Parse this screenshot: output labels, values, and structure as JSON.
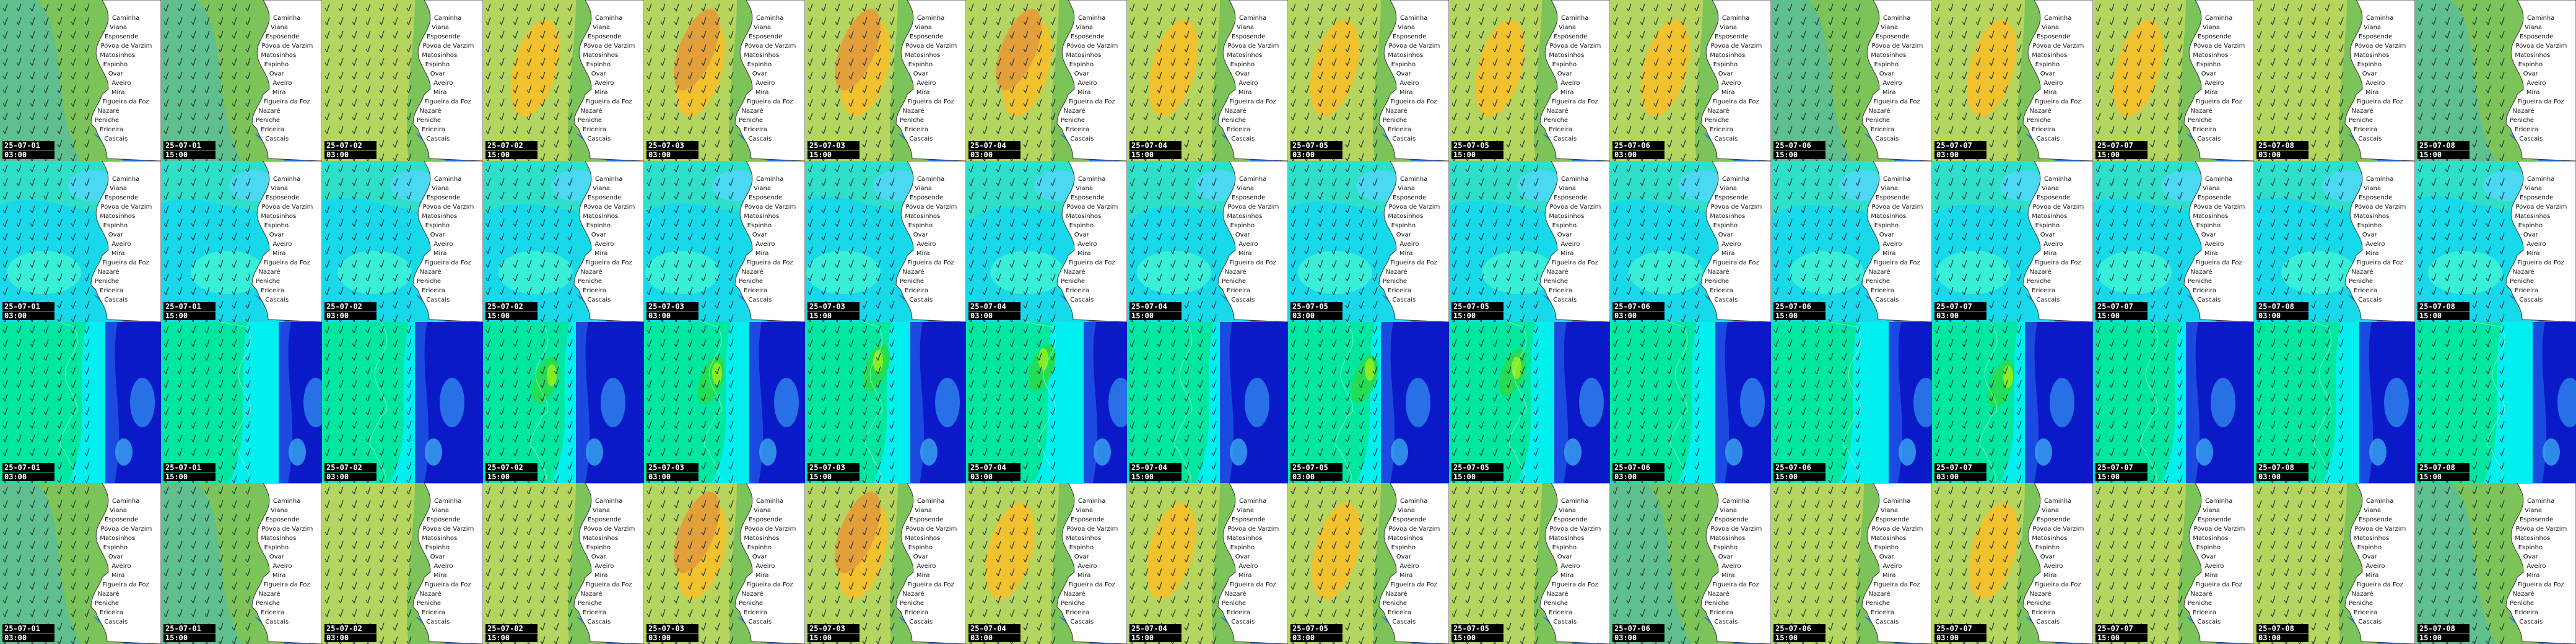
{
  "map": {
    "rows": [
      {
        "variable": "wind-a",
        "frames": [
          {
            "date": "25-07-01",
            "time": "03:00",
            "max_level": 1
          },
          {
            "date": "25-07-01",
            "time": "15:00",
            "max_level": 1
          },
          {
            "date": "25-07-02",
            "time": "03:00",
            "max_level": 2
          },
          {
            "date": "25-07-02",
            "time": "15:00",
            "max_level": 3
          },
          {
            "date": "25-07-03",
            "time": "03:00",
            "max_level": 4
          },
          {
            "date": "25-07-03",
            "time": "15:00",
            "max_level": 4
          },
          {
            "date": "25-07-04",
            "time": "03:00",
            "max_level": 4
          },
          {
            "date": "25-07-04",
            "time": "15:00",
            "max_level": 3
          },
          {
            "date": "25-07-05",
            "time": "03:00",
            "max_level": 3
          },
          {
            "date": "25-07-05",
            "time": "15:00",
            "max_level": 3
          },
          {
            "date": "25-07-06",
            "time": "03:00",
            "max_level": 3
          },
          {
            "date": "25-07-06",
            "time": "15:00",
            "max_level": 1
          },
          {
            "date": "25-07-07",
            "time": "03:00",
            "max_level": 3
          },
          {
            "date": "25-07-07",
            "time": "15:00",
            "max_level": 3
          },
          {
            "date": "25-07-08",
            "time": "03:00",
            "max_level": 2
          },
          {
            "date": "25-07-08",
            "time": "15:00",
            "max_level": 1
          }
        ]
      },
      {
        "variable": "wave",
        "frames": [
          {
            "date": "25-07-01",
            "time": "03:00",
            "max_level": 1
          },
          {
            "date": "25-07-01",
            "time": "15:00",
            "max_level": 1
          },
          {
            "date": "25-07-02",
            "time": "03:00",
            "max_level": 1
          },
          {
            "date": "25-07-02",
            "time": "15:00",
            "max_level": 1
          },
          {
            "date": "25-07-03",
            "time": "03:00",
            "max_level": 1
          },
          {
            "date": "25-07-03",
            "time": "15:00",
            "max_level": 1
          },
          {
            "date": "25-07-04",
            "time": "03:00",
            "max_level": 1
          },
          {
            "date": "25-07-04",
            "time": "15:00",
            "max_level": 1
          },
          {
            "date": "25-07-05",
            "time": "03:00",
            "max_level": 1
          },
          {
            "date": "25-07-05",
            "time": "15:00",
            "max_level": 1
          },
          {
            "date": "25-07-06",
            "time": "03:00",
            "max_level": 1
          },
          {
            "date": "25-07-06",
            "time": "15:00",
            "max_level": 1
          },
          {
            "date": "25-07-07",
            "time": "03:00",
            "max_level": 1
          },
          {
            "date": "25-07-07",
            "time": "15:00",
            "max_level": 1
          },
          {
            "date": "25-07-08",
            "time": "03:00",
            "max_level": 1
          },
          {
            "date": "25-07-08",
            "time": "15:00",
            "max_level": 1
          }
        ]
      },
      {
        "variable": "wind-b",
        "frames": [
          {
            "date": "25-07-01",
            "time": "03:00",
            "max_level": 1
          },
          {
            "date": "25-07-01",
            "time": "15:00",
            "max_level": 1
          },
          {
            "date": "25-07-02",
            "time": "03:00",
            "max_level": 1
          },
          {
            "date": "25-07-02",
            "time": "15:00",
            "max_level": 2
          },
          {
            "date": "25-07-03",
            "time": "03:00",
            "max_level": 2
          },
          {
            "date": "25-07-03",
            "time": "15:00",
            "max_level": 2
          },
          {
            "date": "25-07-04",
            "time": "03:00",
            "max_level": 2
          },
          {
            "date": "25-07-04",
            "time": "15:00",
            "max_level": 1
          },
          {
            "date": "25-07-05",
            "time": "03:00",
            "max_level": 2
          },
          {
            "date": "25-07-05",
            "time": "15:00",
            "max_level": 2
          },
          {
            "date": "25-07-06",
            "time": "03:00",
            "max_level": 1
          },
          {
            "date": "25-07-06",
            "time": "15:00",
            "max_level": 1
          },
          {
            "date": "25-07-07",
            "time": "03:00",
            "max_level": 2
          },
          {
            "date": "25-07-07",
            "time": "15:00",
            "max_level": 1
          },
          {
            "date": "25-07-08",
            "time": "03:00",
            "max_level": 1
          },
          {
            "date": "25-07-08",
            "time": "15:00",
            "max_level": 1
          }
        ]
      },
      {
        "variable": "wind-c",
        "frames": [
          {
            "date": "25-07-01",
            "time": "03:00",
            "max_level": 1
          },
          {
            "date": "25-07-01",
            "time": "15:00",
            "max_level": 1
          },
          {
            "date": "25-07-02",
            "time": "03:00",
            "max_level": 2
          },
          {
            "date": "25-07-02",
            "time": "15:00",
            "max_level": 2
          },
          {
            "date": "25-07-03",
            "time": "03:00",
            "max_level": 4
          },
          {
            "date": "25-07-03",
            "time": "15:00",
            "max_level": 4
          },
          {
            "date": "25-07-04",
            "time": "03:00",
            "max_level": 3
          },
          {
            "date": "25-07-04",
            "time": "15:00",
            "max_level": 3
          },
          {
            "date": "25-07-05",
            "time": "03:00",
            "max_level": 3
          },
          {
            "date": "25-07-05",
            "time": "15:00",
            "max_level": 2
          },
          {
            "date": "25-07-06",
            "time": "03:00",
            "max_level": 1
          },
          {
            "date": "25-07-06",
            "time": "15:00",
            "max_level": 2
          },
          {
            "date": "25-07-07",
            "time": "03:00",
            "max_level": 3
          },
          {
            "date": "25-07-07",
            "time": "15:00",
            "max_level": 2
          },
          {
            "date": "25-07-08",
            "time": "03:00",
            "max_level": 2
          },
          {
            "date": "25-07-08",
            "time": "15:00",
            "max_level": 1
          }
        ]
      }
    ],
    "place_names": [
      "Caminha",
      "Viana",
      "Esposende",
      "Póvoa de Varzim",
      "Matosinhos",
      "Espinho",
      "Ovar",
      "Aveiro",
      "Mira",
      "Figueira da Foz",
      "Nazaré",
      "Peniche",
      "Ericeira",
      "Cascais"
    ],
    "palettes": {
      "wind": [
        "#5fbf8f",
        "#7cc35a",
        "#b8d65e",
        "#f2c12e",
        "#e3a03a"
      ],
      "wave": [
        "#2ee0c8",
        "#17d9ea",
        "#38f0d8",
        "#4ad8f2"
      ],
      "height": [
        "#00f0f0",
        "#00e8a0",
        "#22dd55",
        "#88ee22"
      ],
      "nearshore": [
        "#0a1ac8",
        "#1a4ae0",
        "#2a7ae8",
        "#3aa8f0"
      ],
      "land": "#ffffff",
      "stamp_bg": "#000000",
      "stamp_fg": "#ffffff"
    }
  }
}
